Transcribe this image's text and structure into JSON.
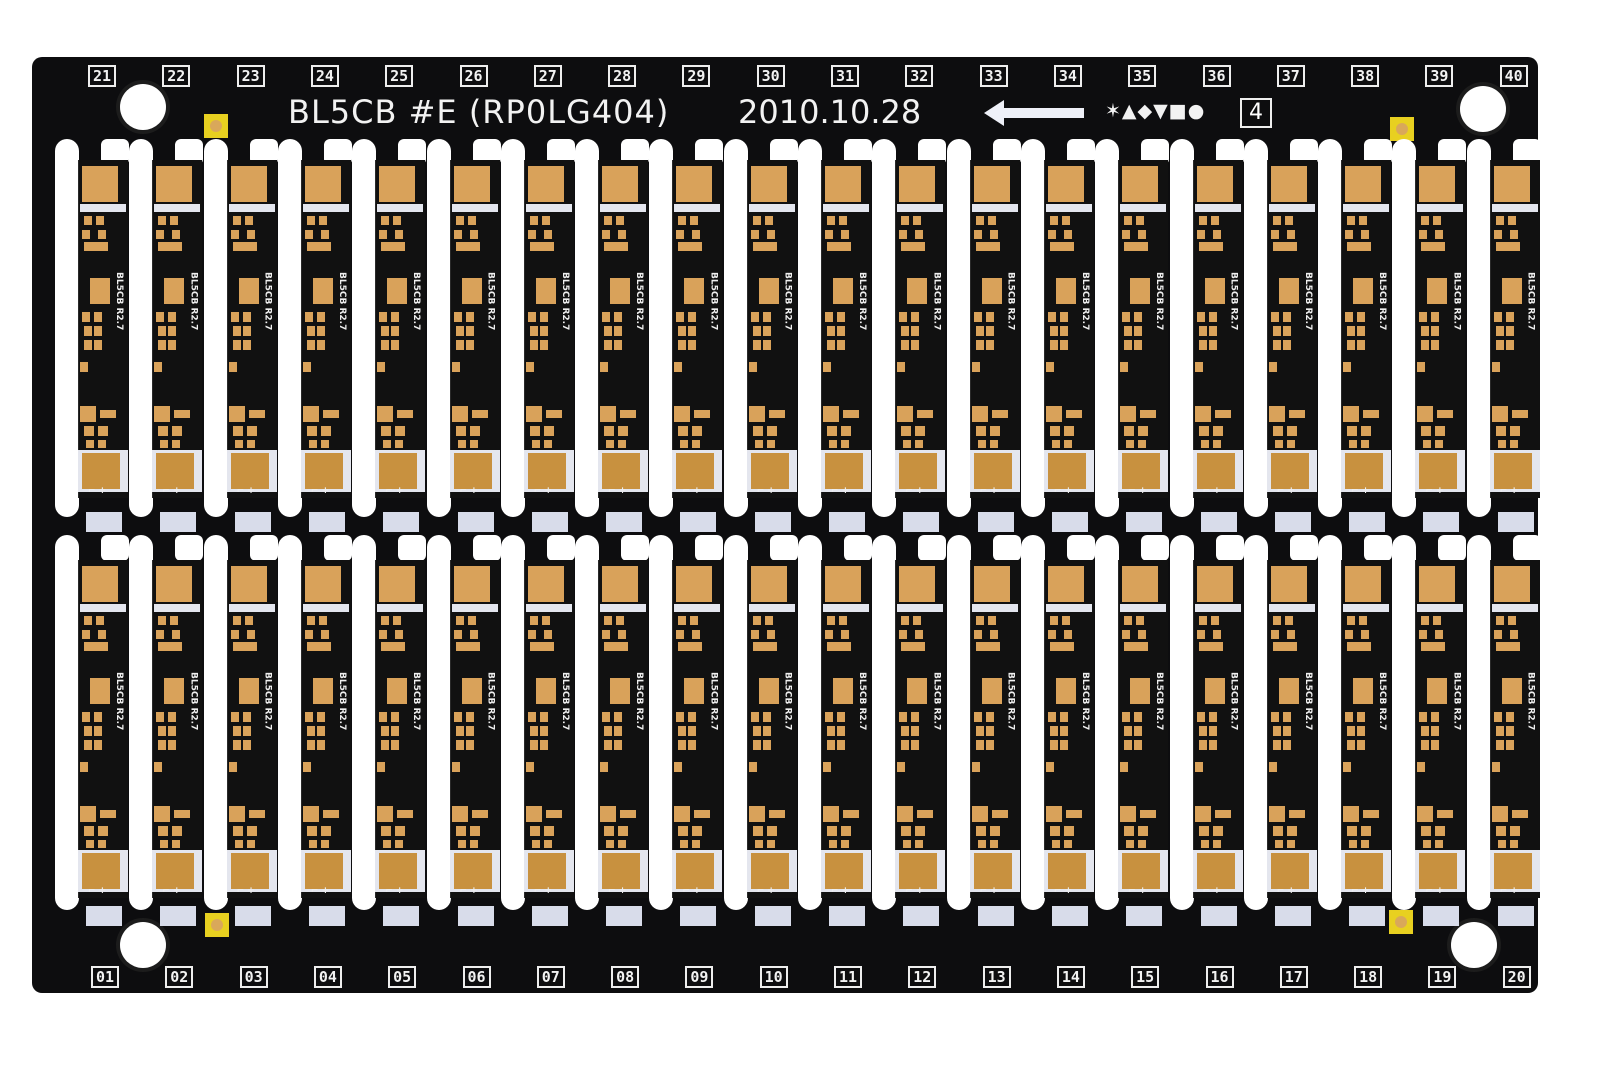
{
  "header": {
    "title": "BL5CB #E (RP0LG404)",
    "date": "2010.10.28",
    "symbols": "✶▲◆▼■●",
    "panel_number": "4"
  },
  "strip_label": "BL5CB R2.7",
  "polarity_mark": "⌐ +",
  "top_numbers": [
    "21",
    "22",
    "23",
    "24",
    "25",
    "26",
    "27",
    "28",
    "29",
    "30",
    "31",
    "32",
    "33",
    "34",
    "35",
    "36",
    "37",
    "38",
    "39",
    "40"
  ],
  "bottom_numbers": [
    "01",
    "02",
    "03",
    "04",
    "05",
    "06",
    "07",
    "08",
    "09",
    "10",
    "11",
    "12",
    "13",
    "14",
    "15",
    "16",
    "17",
    "18",
    "19",
    "20"
  ],
  "colors": {
    "solder_mask": "#0d0d0f",
    "copper": "#d9a25a",
    "silkscreen": "#f0f0f0",
    "fiducial": "#e8d020"
  }
}
